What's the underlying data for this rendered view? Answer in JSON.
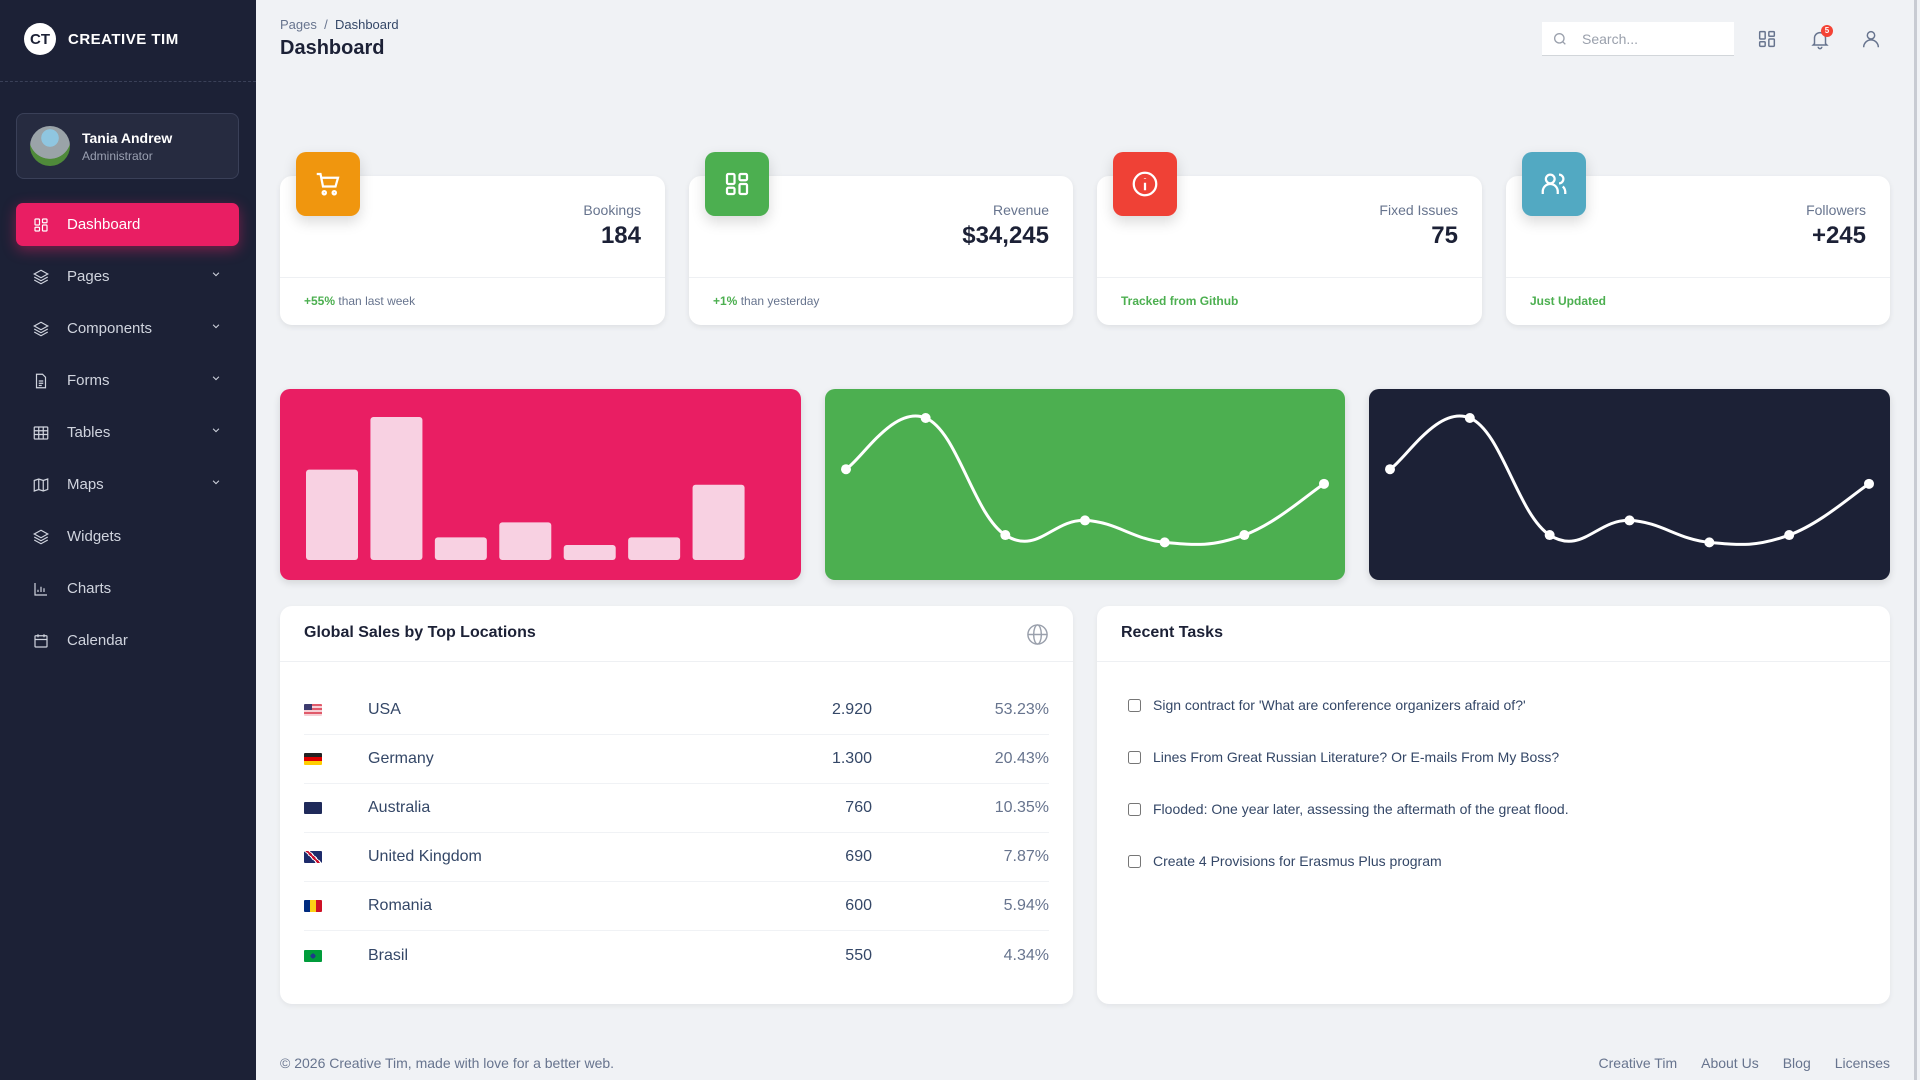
{
  "brand": {
    "mark": "CT",
    "name": "CREATIVE TIM"
  },
  "user": {
    "name": "Tania Andrew",
    "role": "Administrator"
  },
  "sidebar": {
    "items": [
      {
        "label": "Dashboard",
        "icon": "dashboard-icon",
        "active": true
      },
      {
        "label": "Pages",
        "icon": "layers-icon",
        "expandable": true
      },
      {
        "label": "Components",
        "icon": "layers-icon",
        "expandable": true
      },
      {
        "label": "Forms",
        "icon": "document-icon",
        "expandable": true
      },
      {
        "label": "Tables",
        "icon": "table-icon",
        "expandable": true
      },
      {
        "label": "Maps",
        "icon": "map-icon",
        "expandable": true
      },
      {
        "label": "Widgets",
        "icon": "layers-icon"
      },
      {
        "label": "Charts",
        "icon": "bar-chart-icon"
      },
      {
        "label": "Calendar",
        "icon": "calendar-icon"
      }
    ]
  },
  "header": {
    "breadcrumb": [
      "Pages",
      "Dashboard"
    ],
    "separator": "/",
    "title": "Dashboard",
    "search_placeholder": "Search...",
    "notifications": "5"
  },
  "stats": [
    {
      "label": "Bookings",
      "value": "184",
      "delta": "+55%",
      "note": "than last week",
      "color": "#f0960e",
      "icon": "cart-icon"
    },
    {
      "label": "Revenue",
      "value": "$34,245",
      "delta": "+1%",
      "note": "than yesterday",
      "color": "#4caf50",
      "icon": "dashboard-icon"
    },
    {
      "label": "Fixed Issues",
      "value": "75",
      "delta": "",
      "note": "Tracked from Github",
      "color": "#ef4136",
      "icon": "info-icon"
    },
    {
      "label": "Followers",
      "value": "+245",
      "delta": "",
      "note": "Just Updated",
      "color": "#52a9c2",
      "icon": "users-icon"
    }
  ],
  "chart_data": [
    {
      "type": "bar",
      "values": [
        12,
        19,
        3,
        5,
        2,
        3,
        10
      ],
      "ylim": [
        0,
        19
      ],
      "background": "#e91e63",
      "bar_color": "#f8d1e2",
      "grid": false
    },
    {
      "type": "line",
      "values": [
        12,
        19,
        3,
        5,
        2,
        3,
        10
      ],
      "ylim": [
        0,
        19
      ],
      "background": "#4caf50",
      "line_color": "#ffffff",
      "grid": false
    },
    {
      "type": "line",
      "values": [
        12,
        19,
        3,
        5,
        2,
        3,
        10
      ],
      "ylim": [
        0,
        19
      ],
      "background": "#1c2136",
      "line_color": "#ffffff",
      "grid": false
    }
  ],
  "sales": {
    "title": "Global Sales by Top Locations",
    "rows": [
      {
        "country": "USA",
        "sales": "2.920",
        "pct": "53.23%"
      },
      {
        "country": "Germany",
        "sales": "1.300",
        "pct": "20.43%"
      },
      {
        "country": "Australia",
        "sales": "760",
        "pct": "10.35%"
      },
      {
        "country": "United Kingdom",
        "sales": "690",
        "pct": "7.87%"
      },
      {
        "country": "Romania",
        "sales": "600",
        "pct": "5.94%"
      },
      {
        "country": "Brasil",
        "sales": "550",
        "pct": "4.34%"
      }
    ]
  },
  "tasks": {
    "title": "Recent Tasks",
    "items": [
      {
        "text": "Sign contract for 'What are conference organizers afraid of?'",
        "checked": false
      },
      {
        "text": "Lines From Great Russian Literature? Or E-mails From My Boss?",
        "checked": false
      },
      {
        "text": "Flooded: One year later, assessing the aftermath of the great flood.",
        "checked": false
      },
      {
        "text": "Create 4 Provisions for Erasmus Plus program",
        "checked": false
      }
    ]
  },
  "footer": {
    "copyright": "© 2026 Creative Tim, made with love for a better web.",
    "links": [
      "Creative Tim",
      "About Us",
      "Blog",
      "Licenses"
    ]
  }
}
